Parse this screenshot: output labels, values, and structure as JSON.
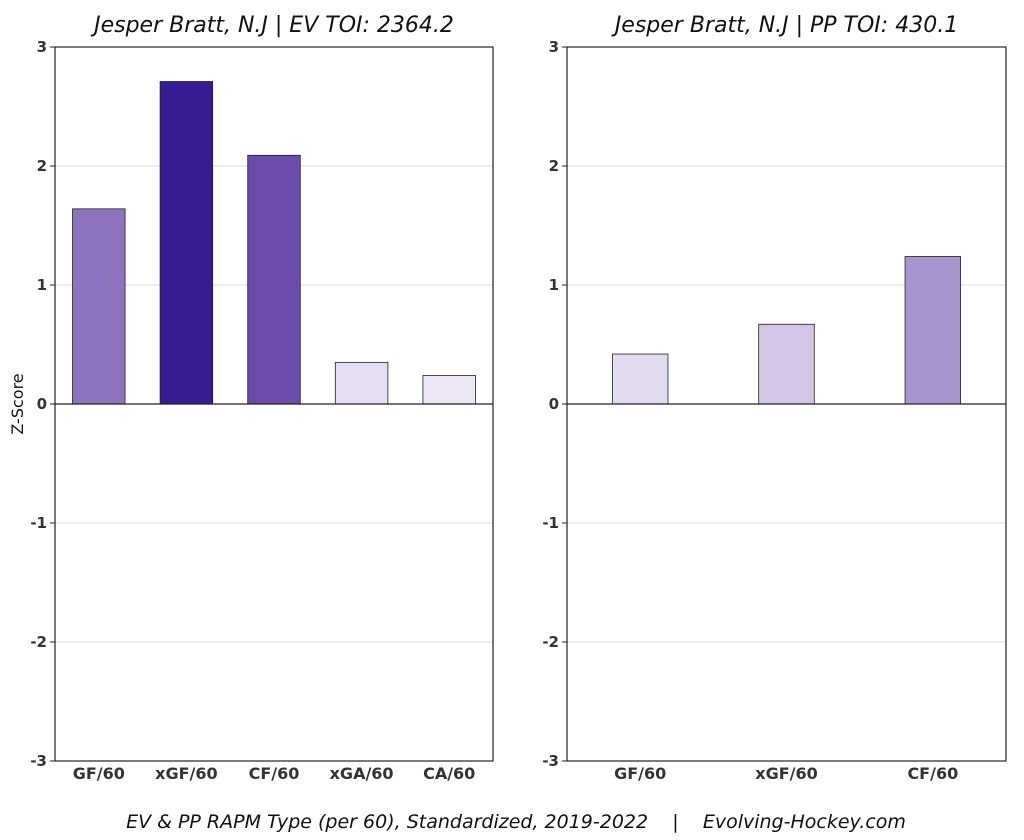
{
  "caption": "EV & PP RAPM Type (per 60), Standardized, 2019-2022    |    Evolving-Hockey.com",
  "chart_data": [
    {
      "type": "bar",
      "title": "Jesper Bratt, N.J  |  EV TOI: 2364.2",
      "ylabel": "Z-Score",
      "xlabel": "",
      "ylim": [
        -3,
        3
      ],
      "yticks": [
        -3,
        -2,
        -1,
        0,
        1,
        2,
        3
      ],
      "grid": true,
      "categories": [
        "GF/60",
        "xGF/60",
        "CF/60",
        "xGA/60",
        "CA/60"
      ],
      "values": [
        1.64,
        2.71,
        2.09,
        0.35,
        0.24
      ],
      "colors": [
        "#8e74be",
        "#371c93",
        "#6c4cab",
        "#e6def2",
        "#ece6f4"
      ]
    },
    {
      "type": "bar",
      "title": "Jesper Bratt, N.J  |  PP TOI: 430.1",
      "ylabel": "",
      "xlabel": "",
      "ylim": [
        -3,
        3
      ],
      "yticks": [
        -3,
        -2,
        -1,
        0,
        1,
        2,
        3
      ],
      "grid": true,
      "categories": [
        "GF/60",
        "xGF/60",
        "CF/60"
      ],
      "values": [
        0.42,
        0.67,
        1.24
      ],
      "colors": [
        "#e2daef",
        "#d2c5e6",
        "#a795ce"
      ]
    }
  ]
}
